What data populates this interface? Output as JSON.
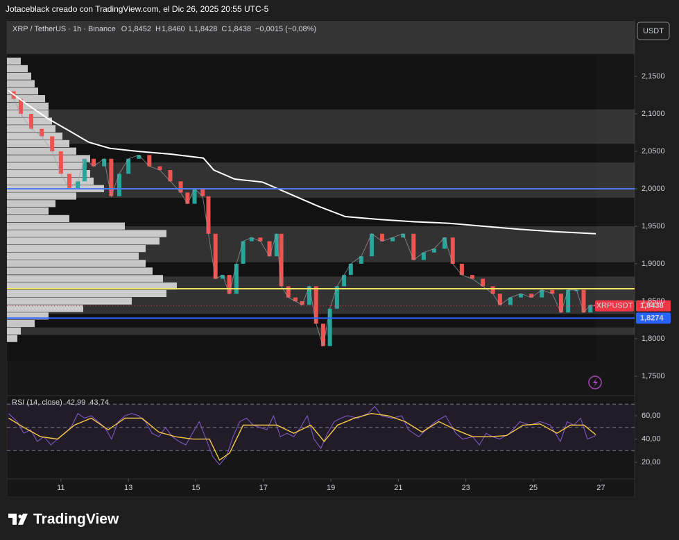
{
  "header": {
    "caption": "Jotaceblack creado con TradingView.com, el Dic 26, 2025 20:55 UTC-5",
    "symbol": "XRP / TetherUS · 1h · Binance",
    "ohlc": [
      {
        "key": "O",
        "value": "1,8452"
      },
      {
        "key": "H",
        "value": "1,8460"
      },
      {
        "key": "L",
        "value": "1,8428"
      },
      {
        "key": "C",
        "value": "1,8438"
      }
    ],
    "change": "−0,0015 (−0,08%)",
    "currency": "USDT"
  },
  "chart_data": [
    {
      "type": "candlestick-line",
      "xlim": [
        9.4,
        28.0
      ],
      "xticks": [
        11,
        13,
        15,
        17,
        19,
        21,
        23,
        25,
        27
      ],
      "ylim": [
        1.7259,
        2.2241
      ],
      "yticks": [
        {
          "value": 1.75,
          "label": "1,7500"
        },
        {
          "value": 1.8,
          "label": "1,8000"
        },
        {
          "value": 1.85,
          "label": "1,8500"
        },
        {
          "value": 1.9,
          "label": "1,9000"
        },
        {
          "value": 1.95,
          "label": "1,9500"
        },
        {
          "value": 2.0,
          "label": "2,0000"
        },
        {
          "value": 2.05,
          "label": "2,0500"
        },
        {
          "value": 2.1,
          "label": "2,1000"
        },
        {
          "value": 2.15,
          "label": "2,1500"
        }
      ],
      "zones": [
        [
          2.18,
          2.224
        ],
        [
          2.06,
          2.106
        ],
        [
          1.988,
          2.035
        ],
        [
          1.902,
          1.95
        ],
        [
          1.833,
          1.883
        ],
        [
          1.805,
          1.815
        ]
      ],
      "levels": [
        {
          "value": 2.0,
          "color": "#4a7df0"
        },
        {
          "value": 1.8667,
          "color": "#f5e663"
        },
        {
          "value": 1.8274,
          "label": "1,8274",
          "color": "#2962ff"
        }
      ],
      "last_price": {
        "name": "XRPUSDT",
        "value": 1.8438,
        "label": "1,8438",
        "color": "#f23645"
      },
      "volume_profile": {
        "color": "#e6e6e6",
        "step": 0.01,
        "levels": [
          2.17,
          2.16,
          2.15,
          2.14,
          2.13,
          2.12,
          2.11,
          2.1,
          2.09,
          2.08,
          2.07,
          2.06,
          2.05,
          2.04,
          2.03,
          2.02,
          2.01,
          2.0,
          1.99,
          1.98,
          1.97,
          1.96,
          1.95,
          1.94,
          1.93,
          1.92,
          1.91,
          1.9,
          1.89,
          1.88,
          1.87,
          1.86,
          1.85,
          1.84,
          1.83,
          1.82,
          1.81,
          1.8
        ],
        "volumes": [
          20,
          30,
          35,
          40,
          45,
          55,
          60,
          60,
          65,
          70,
          80,
          90,
          100,
          120,
          110,
          120,
          125,
          140,
          100,
          70,
          60,
          90,
          170,
          230,
          220,
          200,
          190,
          200,
          210,
          225,
          245,
          230,
          180,
          110,
          60,
          40,
          20,
          15
        ]
      },
      "series": [
        {
          "color": "#26a69a",
          "down_color": "#ef5350",
          "x": [
            9.44,
            9.6,
            9.81,
            10.12,
            10.43,
            10.74,
            11.0,
            11.25,
            11.5,
            11.7,
            11.97,
            12.28,
            12.49,
            12.73,
            13.0,
            13.31,
            13.62,
            13.93,
            14.24,
            14.55,
            14.75,
            14.96,
            15.2,
            15.37,
            15.58,
            15.79,
            15.99,
            16.2,
            16.4,
            16.65,
            16.91,
            17.18,
            17.39,
            17.53,
            17.74,
            17.95,
            18.15,
            18.36,
            18.56,
            18.77,
            18.97,
            19.18,
            19.39,
            19.59,
            19.9,
            20.21,
            20.52,
            20.83,
            21.14,
            21.45,
            21.75,
            22.06,
            22.37,
            22.61,
            22.88,
            23.19,
            23.5,
            23.8,
            24.01,
            24.32,
            24.63,
            24.94,
            25.25,
            25.56,
            25.82,
            26.03,
            26.28,
            26.49,
            26.69,
            26.85
          ],
          "values": [
            2.13,
            2.12,
            2.1,
            2.08,
            2.07,
            2.05,
            2.02,
            2.0,
            2.01,
            2.04,
            2.03,
            2.04,
            1.99,
            2.02,
            2.04,
            2.045,
            2.03,
            2.025,
            2.01,
            1.995,
            1.98,
            2.0,
            1.99,
            1.94,
            1.88,
            1.885,
            1.86,
            1.9,
            1.93,
            1.935,
            1.93,
            1.91,
            1.94,
            1.87,
            1.855,
            1.85,
            1.845,
            1.87,
            1.82,
            1.79,
            1.84,
            1.87,
            1.885,
            1.9,
            1.91,
            1.94,
            1.93,
            1.935,
            1.94,
            1.905,
            1.915,
            1.92,
            1.935,
            1.9,
            1.885,
            1.88,
            1.87,
            1.86,
            1.845,
            1.855,
            1.86,
            1.855,
            1.865,
            1.86,
            1.835,
            1.865,
            1.865,
            1.835,
            1.845,
            1.8438
          ]
        },
        {
          "color": "#ffffff",
          "x": [
            9.44,
            9.99,
            10.6,
            11.22,
            11.83,
            12.45,
            13.27,
            14.3,
            15.22,
            15.53,
            16.15,
            16.97,
            17.79,
            18.61,
            19.43,
            20.46,
            21.48,
            22.51,
            23.54,
            24.57,
            25.6,
            26.85
          ],
          "values": [
            2.131,
            2.113,
            2.094,
            2.078,
            2.062,
            2.054,
            2.05,
            2.046,
            2.041,
            2.025,
            2.013,
            2.009,
            1.993,
            1.977,
            1.963,
            1.959,
            1.956,
            1.954,
            1.95,
            1.946,
            1.943,
            1.94
          ]
        }
      ]
    },
    {
      "type": "line",
      "title": "RSI (14, close)",
      "xlim": [
        9.4,
        28.0
      ],
      "ylim": [
        5.8,
        76.1
      ],
      "yticks": [
        {
          "value": 20,
          "label": "20,00"
        },
        {
          "value": 40,
          "label": "40,00"
        },
        {
          "value": 60,
          "label": "60,00"
        }
      ],
      "bands": [
        30,
        50,
        70
      ],
      "band_fill": "#2a2235",
      "series": [
        {
          "color": "#7e57c2",
          "value_label": "42,99",
          "x": [
            9.45,
            9.7,
            9.9,
            10.1,
            10.3,
            10.5,
            10.7,
            10.9,
            11.1,
            11.3,
            11.5,
            11.7,
            11.9,
            12.1,
            12.3,
            12.5,
            12.7,
            12.9,
            13.1,
            13.3,
            13.5,
            13.7,
            13.9,
            14.1,
            14.3,
            14.5,
            14.7,
            14.9,
            15.1,
            15.3,
            15.5,
            15.7,
            15.9,
            16.1,
            16.3,
            16.5,
            16.7,
            16.9,
            17.1,
            17.3,
            17.5,
            17.7,
            17.9,
            18.1,
            18.3,
            18.5,
            18.7,
            18.9,
            19.1,
            19.3,
            19.5,
            19.8,
            20.1,
            20.3,
            20.5,
            20.8,
            21.1,
            21.3,
            21.6,
            21.9,
            22.1,
            22.4,
            22.7,
            22.9,
            23.2,
            23.4,
            23.6,
            23.8,
            24.0,
            24.3,
            24.6,
            24.9,
            25.2,
            25.5,
            25.8,
            26.0,
            26.2,
            26.4,
            26.6,
            26.85
          ],
          "values": [
            62,
            55,
            45,
            48,
            38,
            42,
            35,
            40,
            45,
            50,
            62,
            58,
            60,
            55,
            50,
            40,
            55,
            60,
            62,
            60,
            55,
            45,
            42,
            50,
            42,
            38,
            35,
            45,
            55,
            40,
            25,
            18,
            25,
            42,
            55,
            58,
            52,
            50,
            48,
            60,
            42,
            45,
            42,
            50,
            60,
            40,
            32,
            45,
            55,
            58,
            60,
            58,
            62,
            68,
            60,
            58,
            60,
            48,
            42,
            50,
            55,
            60,
            45,
            40,
            42,
            35,
            45,
            42,
            40,
            45,
            55,
            52,
            55,
            52,
            38,
            55,
            52,
            58,
            40,
            42.99
          ]
        },
        {
          "color": "#f7c948",
          "value_label": "43,74",
          "x": [
            9.45,
            9.9,
            10.4,
            10.9,
            11.4,
            11.9,
            12.4,
            12.9,
            13.4,
            13.9,
            14.4,
            14.9,
            15.4,
            15.7,
            16.0,
            16.4,
            16.9,
            17.4,
            17.9,
            18.4,
            18.8,
            19.2,
            19.7,
            20.2,
            20.7,
            21.2,
            21.7,
            22.2,
            22.7,
            23.2,
            23.7,
            24.2,
            24.7,
            25.2,
            25.7,
            26.1,
            26.5,
            26.85
          ],
          "values": [
            58,
            50,
            42,
            40,
            52,
            58,
            48,
            58,
            58,
            46,
            42,
            40,
            40,
            22,
            28,
            52,
            52,
            52,
            45,
            52,
            38,
            52,
            58,
            62,
            60,
            55,
            46,
            55,
            48,
            42,
            42,
            43,
            52,
            53,
            45,
            52,
            52,
            43.74
          ]
        }
      ]
    }
  ],
  "footer": {
    "brand": "TradingView"
  }
}
